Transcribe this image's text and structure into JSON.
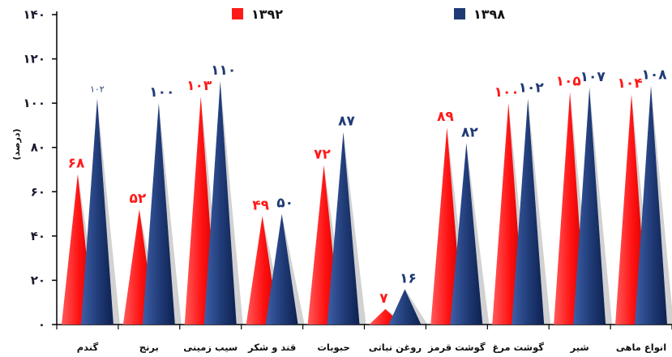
{
  "chart_data": {
    "type": "bar",
    "title": "",
    "xlabel": "",
    "ylabel": "(درصد)",
    "ylim": [
      0,
      140
    ],
    "yticks": [
      "۰",
      "۲۰",
      "۴۰",
      "۶۰",
      "۸۰",
      "۱۰۰",
      "۱۲۰",
      "۱۴۰"
    ],
    "categories": [
      "گندم",
      "برنج",
      "سیب زمینی",
      "قند و شکر",
      "حبوبات",
      "روغن نباتی",
      "گوشت قرمز",
      "گوشت مرغ",
      "شیر",
      "انواع ماهی"
    ],
    "series": [
      {
        "name": "۱۳۹۲",
        "color": "#ff1a1a",
        "values": [
          68,
          52,
          103,
          49,
          72,
          7,
          89,
          100,
          105,
          104
        ],
        "labels": [
          "۶۸",
          "۵۲",
          "۱۰۳",
          "۴۹",
          "۷۲",
          "۷",
          "۸۹",
          "۱۰۰",
          "۱۰۵",
          "۱۰۴"
        ]
      },
      {
        "name": "۱۳۹۸",
        "color": "#1f3a75",
        "values": [
          102,
          100,
          110,
          50,
          87,
          16,
          82,
          102,
          107,
          108
        ],
        "labels": [
          "۱۰۲",
          "۱۰۰",
          "۱۱۰",
          "۵۰",
          "۸۷",
          "۱۶",
          "۸۲",
          "۱۰۲",
          "۱۰۷",
          "۱۰۸"
        ]
      }
    ],
    "legend_position": "top",
    "grid": false
  }
}
